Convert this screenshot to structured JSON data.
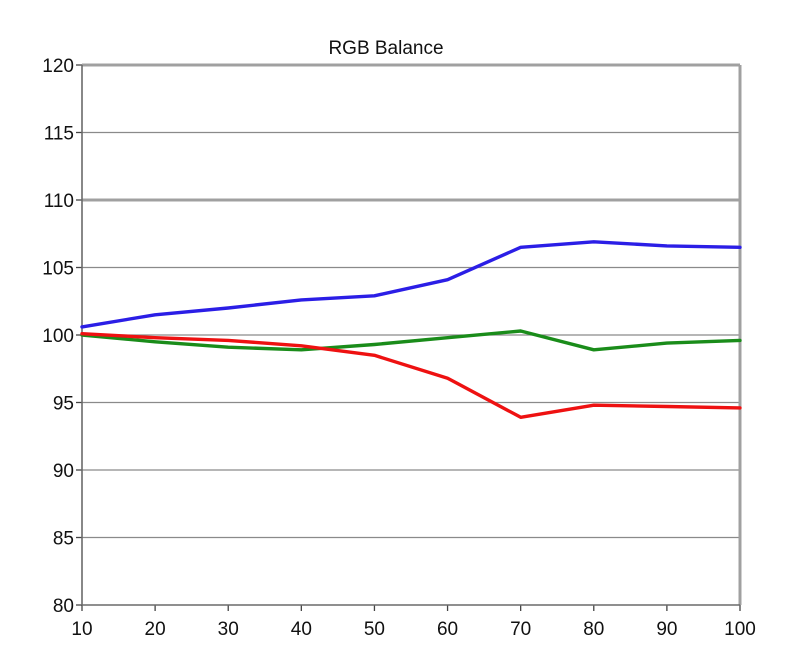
{
  "chart_data": {
    "type": "line",
    "title": "RGB Balance",
    "xlabel": "",
    "ylabel": "",
    "x": [
      10,
      20,
      30,
      40,
      50,
      60,
      70,
      80,
      90,
      100
    ],
    "xlim": [
      10,
      100
    ],
    "ylim": [
      80,
      120
    ],
    "xticks": [
      "10",
      "20",
      "30",
      "40",
      "50",
      "60",
      "70",
      "80",
      "90",
      "100"
    ],
    "yticks": [
      "80",
      "85",
      "90",
      "95",
      "100",
      "105",
      "110",
      "115",
      "120"
    ],
    "grid": true,
    "legend": "none",
    "series": [
      {
        "color": "#2b1ee6",
        "values": [
          100.6,
          101.5,
          102.0,
          102.6,
          102.9,
          104.1,
          106.5,
          106.9,
          106.6,
          106.5
        ]
      },
      {
        "color": "#1a8c1a",
        "values": [
          100.0,
          99.5,
          99.1,
          98.9,
          99.3,
          99.8,
          100.3,
          98.9,
          99.4,
          99.6
        ]
      },
      {
        "color": "#ee1111",
        "values": [
          100.1,
          99.8,
          99.6,
          99.2,
          98.5,
          96.8,
          93.9,
          94.8,
          94.7,
          94.6
        ]
      }
    ]
  }
}
